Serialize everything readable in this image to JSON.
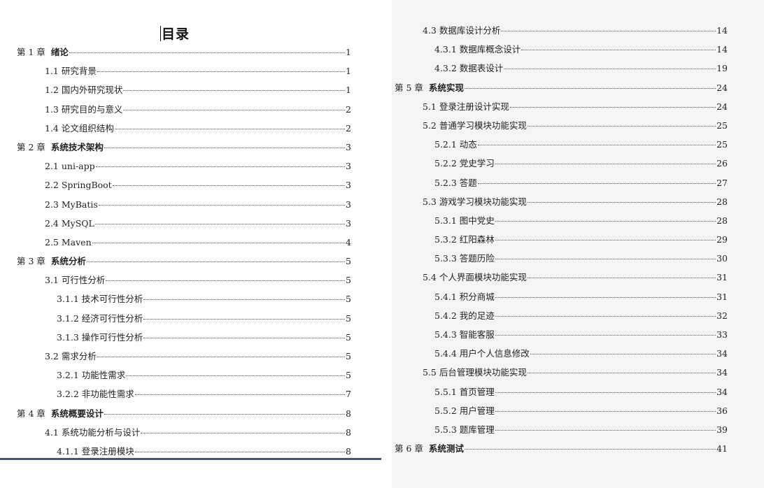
{
  "left_page": {
    "title": "目录",
    "entries": [
      {
        "level": 1,
        "chapter": "第 1 章",
        "title": "绪论",
        "page": "1"
      },
      {
        "level": 2,
        "title": "1.1 研究背景",
        "page": "1"
      },
      {
        "level": 2,
        "title": "1.2 国内外研究现状",
        "page": "1"
      },
      {
        "level": 2,
        "title": "1.3 研究目的与意义",
        "page": "2"
      },
      {
        "level": 2,
        "title": "1.4 论文组织结构",
        "page": "2"
      },
      {
        "level": 1,
        "chapter": "第 2 章",
        "title": "系统技术架构",
        "page": "3"
      },
      {
        "level": 2,
        "title": "2.1 uni-app",
        "page": "3"
      },
      {
        "level": 2,
        "title": "2.2 SpringBoot",
        "page": "3"
      },
      {
        "level": 2,
        "title": "2.3 MyBatis",
        "page": "3"
      },
      {
        "level": 2,
        "title": "2.4 MySQL",
        "page": "3"
      },
      {
        "level": 2,
        "title": "2.5 Maven",
        "page": "4"
      },
      {
        "level": 1,
        "chapter": "第 3 章",
        "title": "系统分析",
        "page": "5"
      },
      {
        "level": 2,
        "title": "3.1 可行性分析",
        "page": "5"
      },
      {
        "level": 3,
        "title": "3.1.1 技术可行性分析",
        "page": "5"
      },
      {
        "level": 3,
        "title": "3.1.2 经济可行性分析",
        "page": "5"
      },
      {
        "level": 3,
        "title": "3.1.3 操作可行性分析",
        "page": "5"
      },
      {
        "level": 2,
        "title": "3.2 需求分析",
        "page": "5"
      },
      {
        "level": 3,
        "title": "3.2.1 功能性需求",
        "page": "5"
      },
      {
        "level": 3,
        "title": "3.2.2 非功能性需求",
        "page": "7"
      },
      {
        "level": 1,
        "chapter": "第 4 章",
        "title": "系统概要设计",
        "page": "8"
      },
      {
        "level": 2,
        "title": "4.1 系统功能分析与设计",
        "page": "8"
      },
      {
        "level": 3,
        "title": "4.1.1 登录注册模块",
        "page": "8"
      }
    ]
  },
  "right_page": {
    "entries": [
      {
        "level": 2,
        "title": "4.3 数据库设计分析",
        "page": "14"
      },
      {
        "level": 3,
        "title": "4.3.1 数据库概念设计",
        "page": "14"
      },
      {
        "level": 3,
        "title": "4.3.2 数据表设计",
        "page": "19"
      },
      {
        "level": 1,
        "chapter": "第 5 章",
        "title": "系统实现",
        "page": "24"
      },
      {
        "level": 2,
        "title": "5.1 登录注册设计实现",
        "page": "24"
      },
      {
        "level": 2,
        "title": "5.2 普通学习模块功能实现",
        "page": "25"
      },
      {
        "level": 3,
        "title": "5.2.1 动态",
        "page": "25"
      },
      {
        "level": 3,
        "title": "5.2.2 党史学习",
        "page": "26"
      },
      {
        "level": 3,
        "title": "5.2.3 答题",
        "page": "27"
      },
      {
        "level": 2,
        "title": "5.3 游戏学习模块功能实现",
        "page": "28"
      },
      {
        "level": 3,
        "title": "5.3.1 图中党史",
        "page": "28"
      },
      {
        "level": 3,
        "title": "5.3.2 红阳森林",
        "page": "29"
      },
      {
        "level": 3,
        "title": "5.3.3 答题历险",
        "page": "30"
      },
      {
        "level": 2,
        "title": "5.4 个人界面模块功能实现",
        "page": "31"
      },
      {
        "level": 3,
        "title": "5.4.1 积分商城",
        "page": "31"
      },
      {
        "level": 3,
        "title": "5.4.2 我的足迹",
        "page": "32"
      },
      {
        "level": 3,
        "title": "5.4.3 智能客服",
        "page": "33"
      },
      {
        "level": 3,
        "title": "5.4.4 用户个人信息修改",
        "page": "34"
      },
      {
        "level": 2,
        "title": "5.5 后台管理模块功能实现",
        "page": "34"
      },
      {
        "level": 3,
        "title": "5.5.1 首页管理",
        "page": "34"
      },
      {
        "level": 3,
        "title": "5.5.2 用户管理",
        "page": "36"
      },
      {
        "level": 3,
        "title": "5.5.3 题库管理",
        "page": "39"
      },
      {
        "level": 1,
        "chapter": "第 6 章",
        "title": "系统测试",
        "page": "41"
      }
    ]
  }
}
